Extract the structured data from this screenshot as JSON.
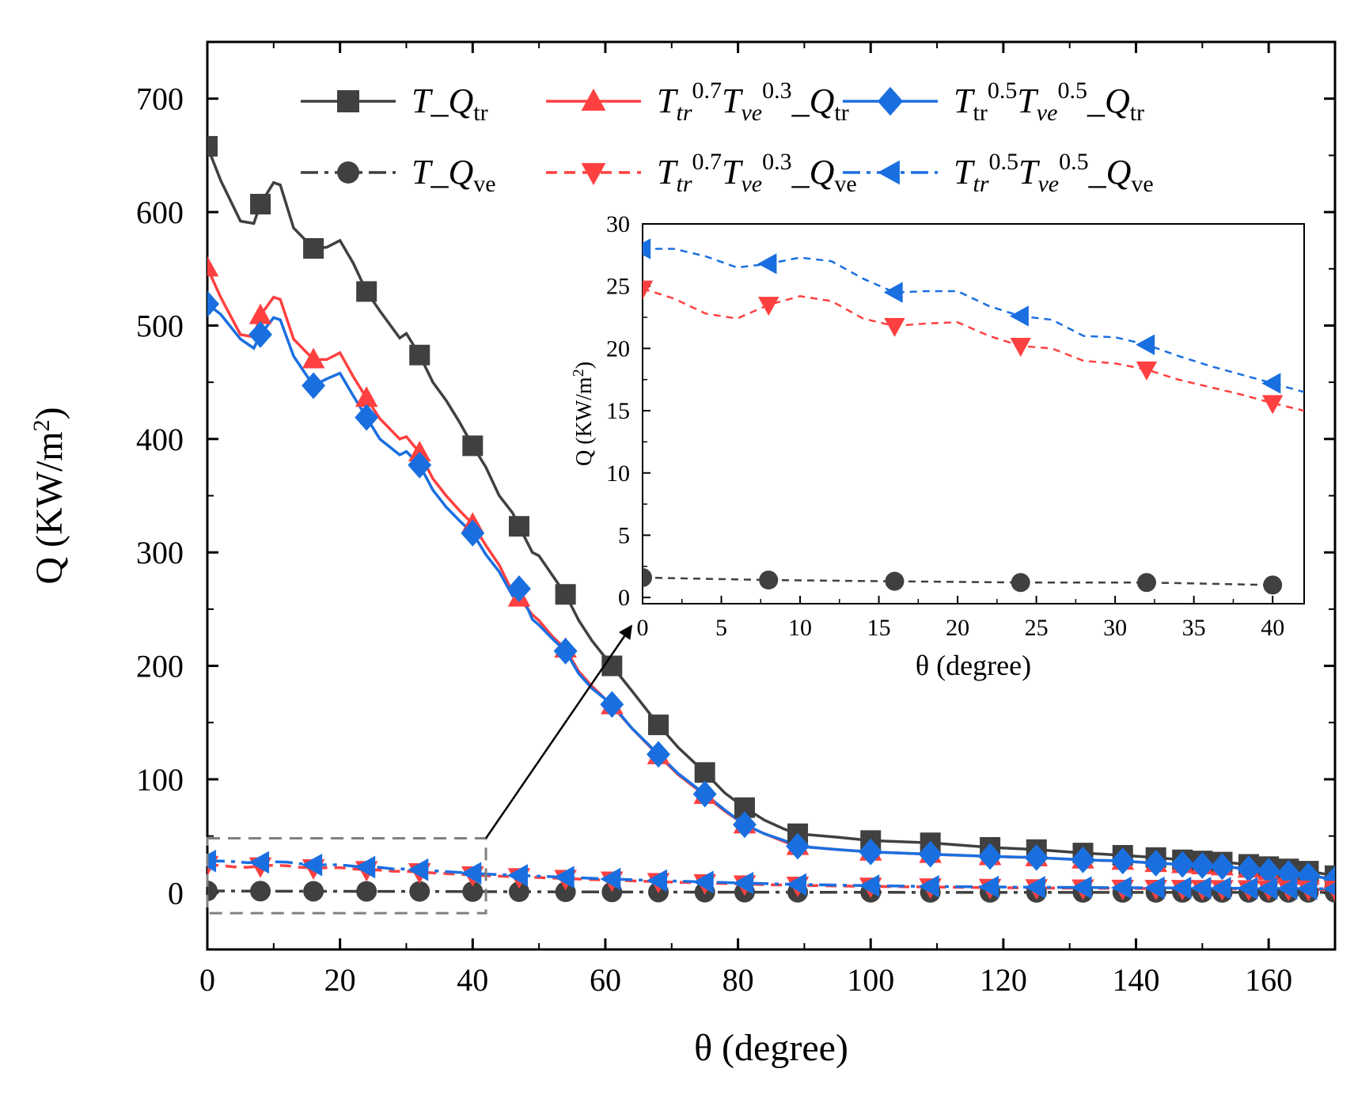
{
  "chart_data": [
    {
      "type": "line",
      "xlabel": "θ (degree)",
      "ylabel": "Q (KW/m²)",
      "ylabel_parts": {
        "base": "Q (KW/m",
        "sup": "2",
        "tail": ")"
      },
      "xlim": [
        0,
        170
      ],
      "ylim": [
        -50,
        750
      ],
      "xticks": [
        0,
        20,
        40,
        60,
        80,
        100,
        120,
        140,
        160
      ],
      "yticks": [
        0,
        100,
        200,
        300,
        400,
        500,
        600,
        700
      ],
      "legend_position": "top",
      "series": [
        {
          "name": "T_Qtr",
          "label_parts": [
            {
              "t": "T",
              "i": true
            },
            {
              "t": "_"
            },
            {
              "t": "Q",
              "i": true
            },
            {
              "t": "tr",
              "sub": true
            }
          ],
          "color": "#404040",
          "dash": "solid",
          "marker": "square",
          "x": [
            0,
            2,
            5,
            7,
            8,
            10,
            11,
            13,
            16,
            18,
            20,
            22,
            24,
            26,
            29,
            30,
            32,
            34,
            36,
            38,
            40,
            42,
            44,
            46,
            47,
            49,
            50,
            52,
            54,
            56,
            58,
            61,
            64,
            68,
            71,
            75,
            78,
            81,
            84,
            87,
            89,
            95,
            100,
            109,
            118,
            125,
            132,
            138,
            143,
            147,
            150,
            153,
            157,
            160,
            163,
            166,
            170
          ],
          "y": [
            658,
            628,
            592,
            590,
            607,
            626,
            624,
            586,
            568,
            569,
            575,
            555,
            530,
            513,
            489,
            493,
            474,
            450,
            434,
            415,
            394,
            375,
            350,
            335,
            323,
            300,
            297,
            280,
            263,
            240,
            222,
            200,
            178,
            148,
            128,
            106,
            88,
            75,
            64,
            56,
            52,
            49,
            46,
            44,
            40,
            38,
            35,
            33,
            31,
            29,
            28,
            27,
            25,
            23,
            21,
            19,
            15
          ]
        },
        {
          "name": "T_Qve",
          "label_parts": [
            {
              "t": "T",
              "i": true
            },
            {
              "t": "_"
            },
            {
              "t": "Q",
              "i": true
            },
            {
              "t": "ve",
              "sub": true
            }
          ],
          "color": "#404040",
          "dash": "dashdot",
          "marker": "circle",
          "x": [
            0,
            8,
            16,
            24,
            32,
            40,
            47,
            54,
            61,
            68,
            75,
            81,
            89,
            100,
            109,
            118,
            125,
            132,
            138,
            143,
            147,
            150,
            153,
            157,
            160,
            163,
            166,
            170
          ],
          "y": [
            1.6,
            1.4,
            1.3,
            1.2,
            1.2,
            1.0,
            0.9,
            0.8,
            0.7,
            0.6,
            0.5,
            0.5,
            0.4,
            0.4,
            0.3,
            0.3,
            0.3,
            0.3,
            0.3,
            0.3,
            0.3,
            0.3,
            0.3,
            0.3,
            0.3,
            0.3,
            0.3,
            0.3
          ]
        },
        {
          "name": "Ttr0.7Tve0.3_Qtr",
          "label_parts": [
            {
              "t": "T",
              "i": true
            },
            {
              "t": "tr",
              "i": true,
              "sub": true
            },
            {
              "t": "0.7",
              "sup": true
            },
            {
              "t": "T",
              "i": true
            },
            {
              "t": "ve",
              "i": true,
              "sub": true
            },
            {
              "t": "0.3",
              "sup": true
            },
            {
              "t": "_"
            },
            {
              "t": "Q",
              "i": true
            },
            {
              "t": "tr",
              "sub": true
            }
          ],
          "color": "#ff4040",
          "dash": "solid",
          "marker": "triangle-up",
          "x": [
            0,
            2,
            5,
            7,
            8,
            10,
            11,
            13,
            16,
            18,
            20,
            22,
            24,
            26,
            29,
            30,
            32,
            34,
            36,
            38,
            40,
            42,
            44,
            46,
            47,
            49,
            50,
            52,
            54,
            56,
            58,
            61,
            64,
            68,
            71,
            75,
            78,
            81,
            84,
            87,
            89,
            95,
            100,
            109,
            118,
            125,
            132,
            138,
            143,
            147,
            150,
            153,
            157,
            160,
            163,
            166,
            170
          ],
          "y": [
            551,
            525,
            492,
            490,
            509,
            525,
            523,
            488,
            470,
            470,
            476,
            455,
            436,
            418,
            400,
            402,
            388,
            365,
            350,
            337,
            325,
            306,
            289,
            265,
            260,
            245,
            240,
            226,
            215,
            195,
            182,
            165,
            145,
            121,
            104,
            86,
            72,
            60,
            52,
            45,
            41,
            38,
            36,
            34,
            32,
            31,
            29,
            28,
            26,
            25,
            24,
            23,
            21,
            19,
            17,
            15,
            12
          ]
        },
        {
          "name": "Ttr0.7Tve0.3_Qve",
          "label_parts": [
            {
              "t": "T",
              "i": true
            },
            {
              "t": "tr",
              "i": true,
              "sub": true
            },
            {
              "t": "0.7",
              "sup": true
            },
            {
              "t": "T",
              "i": true
            },
            {
              "t": "ve",
              "i": true,
              "sub": true
            },
            {
              "t": "0.3",
              "sup": true
            },
            {
              "t": "_"
            },
            {
              "t": "Q",
              "i": true
            },
            {
              "t": "ve",
              "sub": true
            }
          ],
          "color": "#ff4040",
          "dash": "dash",
          "marker": "triangle-down",
          "x": [
            0,
            2,
            4,
            6,
            8,
            10,
            12,
            14,
            16,
            18,
            20,
            22,
            24,
            26,
            28,
            30,
            32,
            34,
            36,
            38,
            40,
            42,
            47,
            54,
            61,
            68,
            75,
            81,
            89,
            100,
            109,
            118,
            125,
            132,
            138,
            143,
            147,
            150,
            153,
            157,
            160,
            163,
            166,
            170
          ],
          "y": [
            24.8,
            24.0,
            22.8,
            22.4,
            23.5,
            24.2,
            23.8,
            22.4,
            21.8,
            22.0,
            22.1,
            21.0,
            20.2,
            20.0,
            19.0,
            18.8,
            18.3,
            17.5,
            16.9,
            16.3,
            15.6,
            15.0,
            14.0,
            12.5,
            11.0,
            9.7,
            8.6,
            7.6,
            6.5,
            5.6,
            5.0,
            4.5,
            4.2,
            4.0,
            3.8,
            3.7,
            3.6,
            3.5,
            3.4,
            3.3,
            3.2,
            3.1,
            3.0,
            2.8
          ]
        },
        {
          "name": "Ttr0.5Tve0.5_Qtr",
          "label_parts": [
            {
              "t": "T",
              "i": true
            },
            {
              "t": "tr",
              "sub": true
            },
            {
              "t": "0.5",
              "sup": true
            },
            {
              "t": "T",
              "i": true
            },
            {
              "t": "ve",
              "i": true,
              "sub": true
            },
            {
              "t": "0.5",
              "sup": true
            },
            {
              "t": "_"
            },
            {
              "t": "Q",
              "i": true
            },
            {
              "t": "tr",
              "sub": true
            }
          ],
          "color": "#1a6fe0",
          "dash": "solid",
          "marker": "diamond",
          "x": [
            0,
            2,
            5,
            7,
            8,
            10,
            11,
            13,
            16,
            18,
            20,
            22,
            24,
            26,
            29,
            30,
            32,
            34,
            36,
            38,
            40,
            42,
            44,
            46,
            47,
            49,
            50,
            52,
            54,
            56,
            58,
            61,
            64,
            68,
            71,
            75,
            78,
            81,
            84,
            87,
            89,
            95,
            100,
            109,
            118,
            125,
            132,
            138,
            143,
            147,
            150,
            153,
            157,
            160,
            163,
            166,
            170
          ],
          "y": [
            519,
            510,
            488,
            480,
            492,
            507,
            505,
            473,
            447,
            453,
            458,
            438,
            419,
            400,
            386,
            389,
            377,
            355,
            340,
            328,
            317,
            298,
            283,
            262,
            268,
            241,
            236,
            224,
            213,
            193,
            180,
            166,
            145,
            122,
            105,
            87,
            73,
            60,
            52,
            46,
            41,
            38,
            36,
            34,
            32,
            31,
            29,
            28,
            26,
            25,
            24,
            23,
            21,
            19,
            17,
            15,
            12
          ]
        },
        {
          "name": "Ttr0.5Tve0.5_Qve",
          "label_parts": [
            {
              "t": "T",
              "i": true
            },
            {
              "t": "tr",
              "i": true,
              "sub": true
            },
            {
              "t": "0.5",
              "sup": true
            },
            {
              "t": "T",
              "i": true
            },
            {
              "t": "ve",
              "i": true,
              "sub": true
            },
            {
              "t": "0.5",
              "sup": true
            },
            {
              "t": "_"
            },
            {
              "t": "Q",
              "i": true
            },
            {
              "t": "ve",
              "sub": true
            }
          ],
          "color": "#1a6fe0",
          "dash": "dashdot",
          "marker": "triangle-left",
          "x": [
            0,
            2,
            4,
            6,
            8,
            10,
            12,
            14,
            16,
            18,
            20,
            22,
            24,
            26,
            28,
            30,
            32,
            34,
            36,
            38,
            40,
            42,
            47,
            54,
            61,
            68,
            75,
            81,
            89,
            100,
            109,
            118,
            125,
            132,
            138,
            143,
            147,
            150,
            153,
            157,
            160,
            163,
            166,
            170
          ],
          "y": [
            28.0,
            28.0,
            27.4,
            26.5,
            26.8,
            27.3,
            27.0,
            25.6,
            24.5,
            24.6,
            24.6,
            23.4,
            22.6,
            22.3,
            21.0,
            20.9,
            20.3,
            19.4,
            18.6,
            17.9,
            17.2,
            16.5,
            15.3,
            13.7,
            12.1,
            10.7,
            9.5,
            8.5,
            7.3,
            6.2,
            5.6,
            5.1,
            4.8,
            4.6,
            4.4,
            4.3,
            4.2,
            4.1,
            4.0,
            3.9,
            3.8,
            3.7,
            3.6,
            3.4
          ]
        }
      ],
      "zoom_box": {
        "x": [
          0,
          42
        ],
        "y": [
          -18,
          48
        ]
      }
    },
    {
      "type": "line",
      "role": "inset",
      "xlabel": "θ (degree)",
      "ylabel": "Q (KW/m²)",
      "ylabel_parts": {
        "base": "Q (KW/m",
        "sup": "2",
        "tail": ")"
      },
      "xlim": [
        0,
        42
      ],
      "ylim": [
        -0.5,
        30
      ],
      "xticks": [
        0,
        5,
        10,
        15,
        20,
        25,
        30,
        35,
        40
      ],
      "yticks": [
        0,
        5,
        10,
        15,
        20,
        25,
        30
      ],
      "series_shown": [
        "T_Qve",
        "Ttr0.7Tve0.3_Qve",
        "Ttr0.5Tve0.5_Qve"
      ]
    }
  ]
}
